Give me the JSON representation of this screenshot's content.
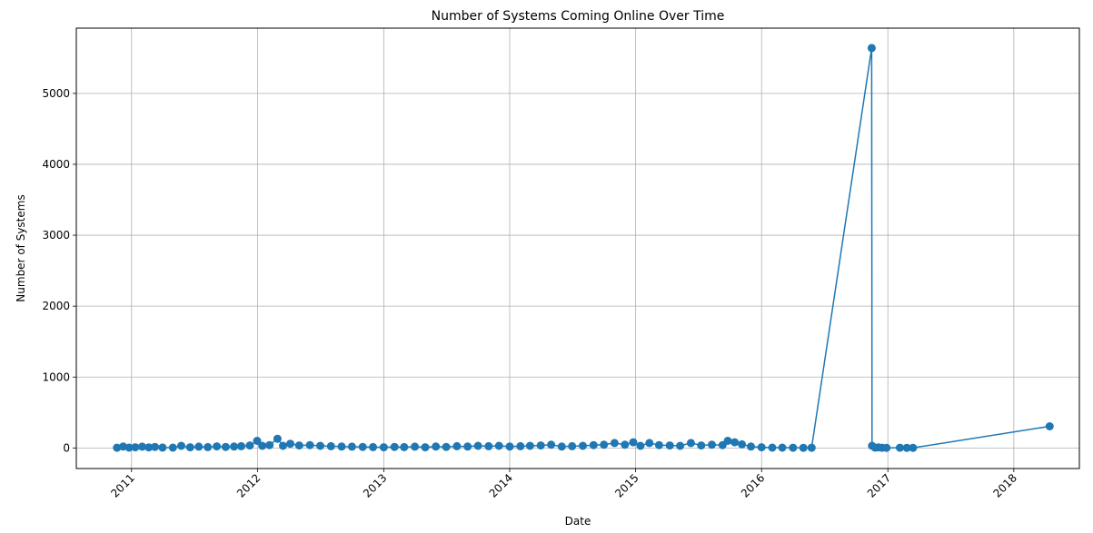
{
  "chart_data": {
    "type": "line",
    "title": "Number of Systems Coming Online Over Time",
    "xlabel": "Date",
    "ylabel": "Number of Systems",
    "x_ticks": [
      "2011",
      "2012",
      "2013",
      "2014",
      "2015",
      "2016",
      "2017",
      "2018"
    ],
    "y_ticks": [
      "0",
      "1000",
      "2000",
      "3000",
      "4000",
      "5000"
    ],
    "xlim": [
      "2010-07-25",
      "2018-07-10"
    ],
    "ylim": [
      -290,
      5920
    ],
    "grid": true,
    "marker": "circle",
    "color": "#1f77b4",
    "series": [
      {
        "values": [
          [
            "2010-11-20",
            3
          ],
          [
            "2010-12-08",
            20
          ],
          [
            "2010-12-25",
            5
          ],
          [
            "2011-01-12",
            10
          ],
          [
            "2011-02-01",
            18
          ],
          [
            "2011-02-20",
            8
          ],
          [
            "2011-03-10",
            15
          ],
          [
            "2011-04-01",
            6
          ],
          [
            "2011-05-01",
            4
          ],
          [
            "2011-05-25",
            30
          ],
          [
            "2011-06-20",
            10
          ],
          [
            "2011-07-15",
            18
          ],
          [
            "2011-08-10",
            12
          ],
          [
            "2011-09-05",
            22
          ],
          [
            "2011-10-01",
            15
          ],
          [
            "2011-10-25",
            20
          ],
          [
            "2011-11-15",
            25
          ],
          [
            "2011-12-10",
            35
          ],
          [
            "2011-12-31",
            100
          ],
          [
            "2012-01-15",
            30
          ],
          [
            "2012-02-05",
            40
          ],
          [
            "2012-02-28",
            130
          ],
          [
            "2012-03-15",
            30
          ],
          [
            "2012-04-05",
            60
          ],
          [
            "2012-05-01",
            35
          ],
          [
            "2012-06-01",
            40
          ],
          [
            "2012-07-01",
            30
          ],
          [
            "2012-08-01",
            25
          ],
          [
            "2012-09-01",
            20
          ],
          [
            "2012-10-01",
            18
          ],
          [
            "2012-11-01",
            15
          ],
          [
            "2012-12-01",
            12
          ],
          [
            "2013-01-01",
            10
          ],
          [
            "2013-02-01",
            15
          ],
          [
            "2013-03-01",
            12
          ],
          [
            "2013-04-01",
            18
          ],
          [
            "2013-05-01",
            10
          ],
          [
            "2013-06-01",
            20
          ],
          [
            "2013-07-01",
            15
          ],
          [
            "2013-08-01",
            25
          ],
          [
            "2013-09-01",
            20
          ],
          [
            "2013-10-01",
            30
          ],
          [
            "2013-11-01",
            25
          ],
          [
            "2013-12-01",
            30
          ],
          [
            "2014-01-01",
            20
          ],
          [
            "2014-02-01",
            25
          ],
          [
            "2014-03-01",
            30
          ],
          [
            "2014-04-01",
            35
          ],
          [
            "2014-05-01",
            45
          ],
          [
            "2014-06-01",
            20
          ],
          [
            "2014-07-01",
            25
          ],
          [
            "2014-08-01",
            30
          ],
          [
            "2014-09-01",
            40
          ],
          [
            "2014-10-01",
            45
          ],
          [
            "2014-11-01",
            70
          ],
          [
            "2014-12-01",
            45
          ],
          [
            "2014-12-25",
            80
          ],
          [
            "2015-01-15",
            30
          ],
          [
            "2015-02-10",
            70
          ],
          [
            "2015-03-10",
            40
          ],
          [
            "2015-04-10",
            35
          ],
          [
            "2015-05-10",
            30
          ],
          [
            "2015-06-10",
            70
          ],
          [
            "2015-07-10",
            35
          ],
          [
            "2015-08-10",
            45
          ],
          [
            "2015-09-10",
            40
          ],
          [
            "2015-09-25",
            100
          ],
          [
            "2015-10-15",
            80
          ],
          [
            "2015-11-05",
            50
          ],
          [
            "2015-12-01",
            20
          ],
          [
            "2016-01-01",
            10
          ],
          [
            "2016-02-01",
            5
          ],
          [
            "2016-03-01",
            4
          ],
          [
            "2016-04-01",
            3
          ],
          [
            "2016-05-01",
            2
          ],
          [
            "2016-05-25",
            3
          ],
          [
            "2016-11-15",
            5640
          ],
          [
            "2016-11-16",
            30
          ],
          [
            "2016-11-25",
            5
          ],
          [
            "2016-12-05",
            8
          ],
          [
            "2016-12-15",
            3
          ],
          [
            "2016-12-28",
            2
          ],
          [
            "2017-02-05",
            3
          ],
          [
            "2017-02-25",
            2
          ],
          [
            "2017-03-15",
            2
          ],
          [
            "2018-04-15",
            305
          ]
        ]
      }
    ]
  }
}
